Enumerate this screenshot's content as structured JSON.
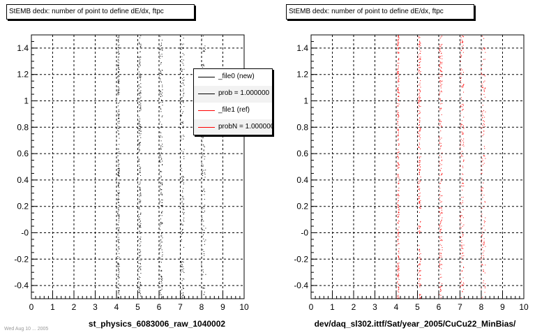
{
  "chart_data": [
    {
      "type": "scatter",
      "title": "StEMB dedx: number of point to define dE/dx, ftpc",
      "xlabel": "st_physics_6083006_raw_1040002",
      "ylabel": "",
      "xlim": [
        0,
        10
      ],
      "ylim": [
        -0.5,
        1.5
      ],
      "x_ticks": [
        "0",
        "1",
        "2",
        "3",
        "4",
        "5",
        "6",
        "7",
        "8",
        "9",
        "10"
      ],
      "y_ticks": [
        "-0.4",
        "-0.2",
        "-0",
        "0.2",
        "0.4",
        "0.6",
        "0.8",
        "1",
        "1.2",
        "1.4"
      ],
      "grid": true,
      "legend_position": "top-right",
      "series": [
        {
          "name": "_file0 (new)",
          "color": "#000000",
          "x": [
            4,
            5,
            6,
            7,
            8
          ],
          "y_range": [
            -0.5,
            1.5
          ]
        },
        {
          "name": "_file1 (ref)",
          "color": "#ff0000",
          "x": [],
          "y_range": [
            -0.5,
            1.5
          ]
        }
      ],
      "legend": [
        {
          "label": "_file0 (new)",
          "color": "#000000"
        },
        {
          "label": "prob = 1.000000",
          "color": "#000000"
        },
        {
          "label": "_file1 (ref)",
          "color": "#ff0000"
        },
        {
          "label": "probN = 1.000000",
          "color": "#ff0000"
        }
      ]
    },
    {
      "type": "scatter",
      "title": "StEMB dedx: number of point to define dE/dx, ftpc",
      "xlabel": "dev/daq_sl302.ittf/Sat/year_2005/CuCu22_MinBias/",
      "ylabel": "",
      "xlim": [
        0,
        10
      ],
      "ylim": [
        -0.5,
        1.5
      ],
      "x_ticks": [
        "0",
        "1",
        "2",
        "3",
        "4",
        "5",
        "6",
        "7",
        "8",
        "9",
        "10"
      ],
      "y_ticks": [
        "-0.4",
        "-0.2",
        "-0",
        "0.2",
        "0.4",
        "0.6",
        "0.8",
        "1",
        "1.2",
        "1.4"
      ],
      "grid": true,
      "series": [
        {
          "name": "_file1 (ref)",
          "color": "#ff0000",
          "x": [
            4,
            5,
            6,
            7,
            8
          ],
          "y_range": [
            -0.5,
            1.5
          ]
        }
      ]
    }
  ],
  "footer_stamp": "Wed Aug 10 ... 2005"
}
